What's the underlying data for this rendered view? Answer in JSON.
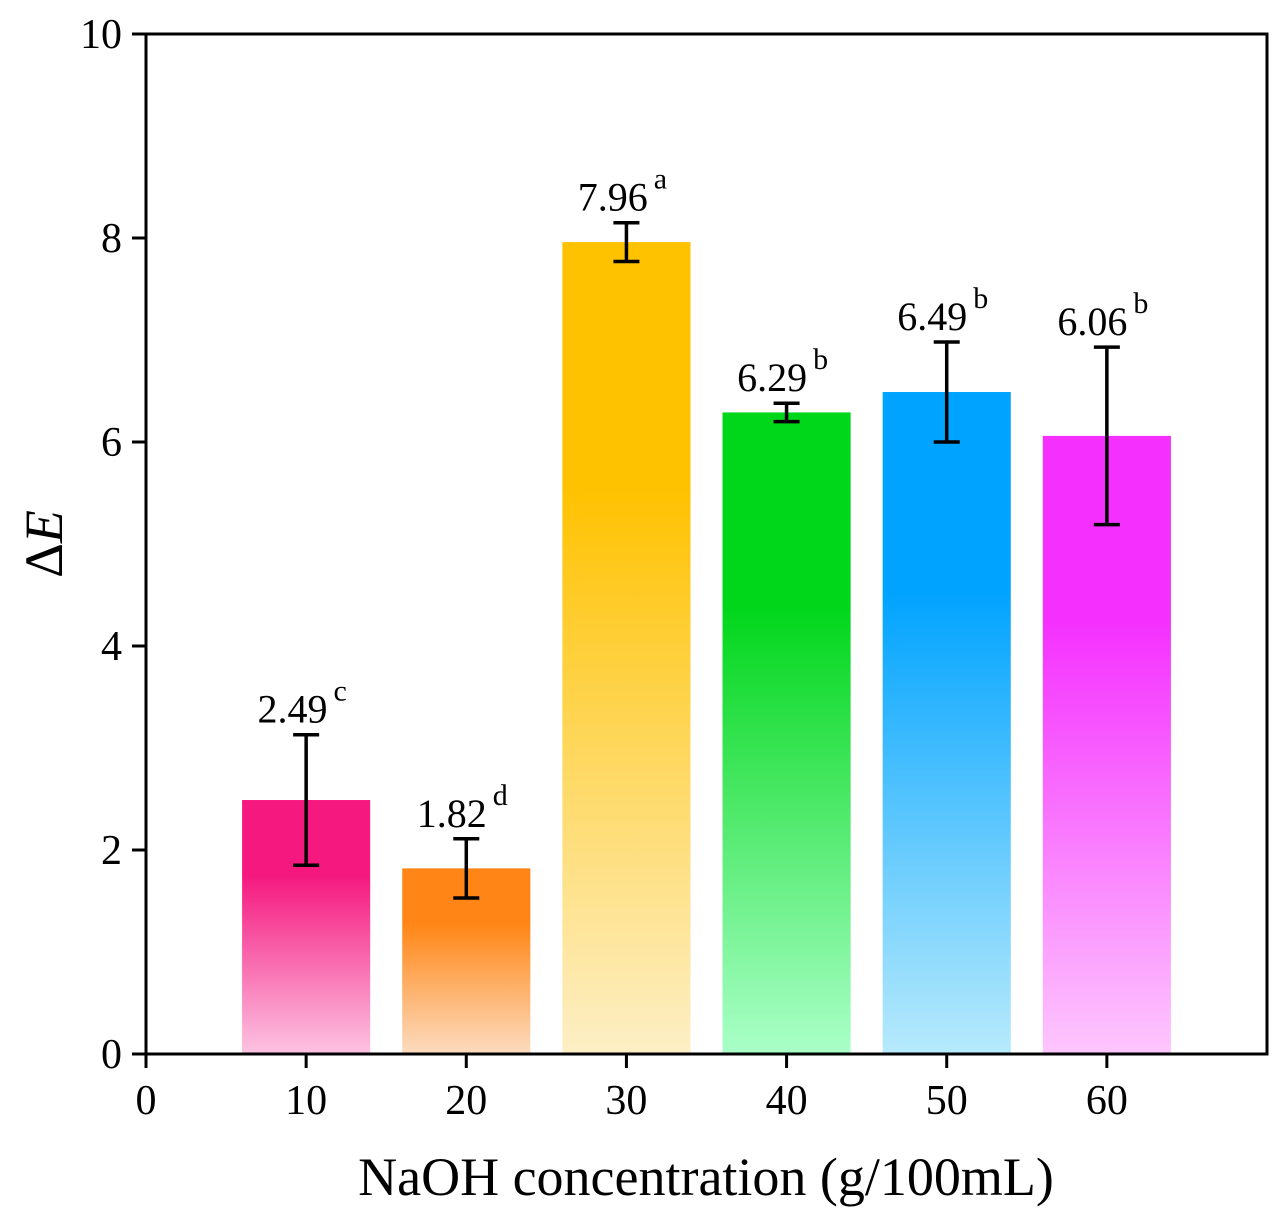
{
  "chart_data": {
    "type": "bar",
    "title": "",
    "xlabel": "NaOH concentration (g/100mL)",
    "ylabel_symbol": "Δ",
    "ylabel_var": "E",
    "x": [
      10,
      20,
      30,
      40,
      50,
      60
    ],
    "values": [
      2.49,
      1.82,
      7.96,
      6.29,
      6.49,
      6.06
    ],
    "value_labels": [
      "2.49",
      "1.82",
      "7.96",
      "6.29",
      "6.49",
      "6.06"
    ],
    "errors": [
      0.64,
      0.29,
      0.19,
      0.09,
      0.49,
      0.87
    ],
    "significance": [
      "c",
      "d",
      "a",
      "b",
      "b",
      "b"
    ],
    "bar_colors_top": [
      "#f5197f",
      "#ff8616",
      "#ffc200",
      "#00d61a",
      "#00a3ff",
      "#f530ff"
    ],
    "bar_colors_bottom": [
      "#fcc3e2",
      "#fcdcc0",
      "#fdefc6",
      "#aaffc8",
      "#b7eafc",
      "#fdc6fd"
    ],
    "xlim": [
      0,
      70
    ],
    "ylim": [
      0,
      10
    ],
    "xticks": [
      "0",
      "10",
      "20",
      "30",
      "40",
      "50",
      "60"
    ],
    "yticks": [
      "0",
      "2",
      "4",
      "6",
      "8",
      "10"
    ],
    "grid": false,
    "legend": "none"
  }
}
